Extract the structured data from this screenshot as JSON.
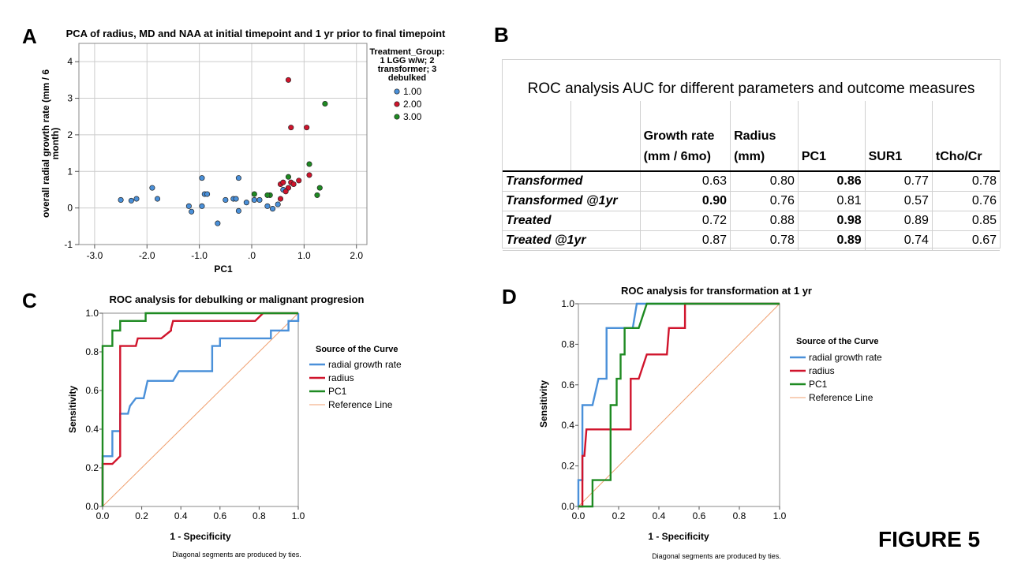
{
  "figure_label": "FIGURE 5",
  "panels": {
    "a": "A",
    "b": "B",
    "c": "C",
    "d": "D"
  },
  "colors": {
    "blue": "#4a90d9",
    "red": "#d0142c",
    "green": "#1e8a22",
    "ref": "#f0a070",
    "grid": "#cccccc"
  },
  "chart_data": [
    {
      "id": "A",
      "type": "scatter",
      "title": "PCA of radius, MD and NAA at initial timepoint and 1 yr prior to final timepoint",
      "xlabel": "PC1",
      "ylabel": "overall radial growth rate (mm / 6 month)",
      "xlim": [
        -3.3,
        2.2
      ],
      "ylim": [
        -1,
        4.5
      ],
      "xticks": [
        -3,
        -2,
        -1,
        0,
        1,
        2
      ],
      "xtick_labels": [
        "-3.0",
        "-2.0",
        "-1.0",
        ".0",
        "1.0",
        "2.0"
      ],
      "yticks": [
        -1,
        0,
        1,
        2,
        3,
        4
      ],
      "ytick_labels": [
        "-1",
        "0",
        "1",
        "2",
        "3",
        "4"
      ],
      "legend_title": "Treatment_Group: 1 LGG w/w; 2 transformer; 3 debulked",
      "series": [
        {
          "name": "1.00",
          "color": "#4a90d9",
          "points": [
            [
              -2.5,
              0.22
            ],
            [
              -2.3,
              0.2
            ],
            [
              -2.2,
              0.25
            ],
            [
              -1.9,
              0.55
            ],
            [
              -1.8,
              0.25
            ],
            [
              -1.2,
              0.05
            ],
            [
              -1.15,
              -0.1
            ],
            [
              -0.95,
              0.82
            ],
            [
              -0.9,
              0.38
            ],
            [
              -0.85,
              0.38
            ],
            [
              -0.95,
              0.05
            ],
            [
              -0.65,
              -0.42
            ],
            [
              -0.5,
              0.22
            ],
            [
              -0.35,
              0.25
            ],
            [
              -0.3,
              0.25
            ],
            [
              -0.25,
              0.82
            ],
            [
              -0.25,
              -0.08
            ],
            [
              -0.1,
              0.15
            ],
            [
              0.05,
              0.22
            ],
            [
              0.15,
              0.22
            ],
            [
              0.3,
              0.05
            ],
            [
              0.4,
              -0.02
            ],
            [
              0.5,
              0.1
            ],
            [
              0.6,
              0.5
            ]
          ]
        },
        {
          "name": "2.00",
          "color": "#d0142c",
          "points": [
            [
              0.7,
              3.5
            ],
            [
              0.75,
              2.2
            ],
            [
              1.05,
              2.2
            ],
            [
              1.1,
              0.9
            ],
            [
              0.55,
              0.65
            ],
            [
              0.6,
              0.7
            ],
            [
              0.7,
              0.55
            ],
            [
              0.75,
              0.7
            ],
            [
              0.8,
              0.65
            ],
            [
              0.9,
              0.75
            ],
            [
              0.65,
              0.45
            ],
            [
              0.55,
              0.25
            ]
          ]
        },
        {
          "name": "3.00",
          "color": "#1e8a22",
          "points": [
            [
              1.4,
              2.85
            ],
            [
              1.1,
              1.2
            ],
            [
              1.3,
              0.55
            ],
            [
              1.25,
              0.35
            ],
            [
              0.7,
              0.85
            ],
            [
              0.35,
              0.35
            ],
            [
              0.3,
              0.35
            ],
            [
              0.05,
              0.38
            ]
          ]
        }
      ]
    },
    {
      "id": "C",
      "type": "line",
      "title": "ROC analysis for debulking or malignant progresion",
      "xlabel": "1 - Specificity",
      "ylabel": "Sensitivity",
      "xlim": [
        0,
        1
      ],
      "ylim": [
        0,
        1
      ],
      "ticks": [
        0,
        0.2,
        0.4,
        0.6,
        0.8,
        1.0
      ],
      "tick_labels": [
        "0.0",
        "0.2",
        "0.4",
        "0.6",
        "0.8",
        "1.0"
      ],
      "legend_title": "Source of the Curve",
      "footnote": "Diagonal segments are produced by ties.",
      "series": [
        {
          "name": "radial growth rate",
          "color": "#4a90d9",
          "points": [
            [
              0,
              0
            ],
            [
              0,
              0.26
            ],
            [
              0.05,
              0.26
            ],
            [
              0.05,
              0.39
            ],
            [
              0.09,
              0.39
            ],
            [
              0.09,
              0.48
            ],
            [
              0.13,
              0.48
            ],
            [
              0.14,
              0.52
            ],
            [
              0.17,
              0.56
            ],
            [
              0.21,
              0.56
            ],
            [
              0.23,
              0.65
            ],
            [
              0.36,
              0.65
            ],
            [
              0.39,
              0.7
            ],
            [
              0.56,
              0.7
            ],
            [
              0.56,
              0.83
            ],
            [
              0.6,
              0.83
            ],
            [
              0.6,
              0.87
            ],
            [
              0.86,
              0.87
            ],
            [
              0.86,
              0.91
            ],
            [
              0.95,
              0.91
            ],
            [
              0.95,
              0.96
            ],
            [
              1,
              0.96
            ],
            [
              1,
              1
            ]
          ]
        },
        {
          "name": "radius",
          "color": "#d0142c",
          "points": [
            [
              0,
              0
            ],
            [
              0,
              0.22
            ],
            [
              0.05,
              0.22
            ],
            [
              0.09,
              0.26
            ],
            [
              0.09,
              0.83
            ],
            [
              0.17,
              0.83
            ],
            [
              0.18,
              0.87
            ],
            [
              0.3,
              0.87
            ],
            [
              0.35,
              0.91
            ],
            [
              0.35,
              0.92
            ],
            [
              0.36,
              0.96
            ],
            [
              0.78,
              0.96
            ],
            [
              0.82,
              1
            ],
            [
              1,
              1
            ]
          ]
        },
        {
          "name": "PC1",
          "color": "#1e8a22",
          "points": [
            [
              0,
              0
            ],
            [
              0,
              0.83
            ],
            [
              0.05,
              0.83
            ],
            [
              0.05,
              0.91
            ],
            [
              0.09,
              0.91
            ],
            [
              0.09,
              0.96
            ],
            [
              0.22,
              0.96
            ],
            [
              0.22,
              1
            ],
            [
              1,
              1
            ]
          ]
        },
        {
          "name": "Reference Line",
          "color": "#f0a070",
          "points": [
            [
              0,
              0
            ],
            [
              1,
              1
            ]
          ]
        }
      ]
    },
    {
      "id": "D",
      "type": "line",
      "title": "ROC analysis for transformation at 1 yr",
      "xlabel": "1 - Specificity",
      "ylabel": "Sensitivity",
      "xlim": [
        0,
        1
      ],
      "ylim": [
        0,
        1
      ],
      "ticks": [
        0,
        0.2,
        0.4,
        0.6,
        0.8,
        1.0
      ],
      "tick_labels": [
        "0.0",
        "0.2",
        "0.4",
        "0.6",
        "0.8",
        "1.0"
      ],
      "legend_title": "Source of the Curve",
      "footnote": "Diagonal segments are produced by ties.",
      "series": [
        {
          "name": "radial growth rate",
          "color": "#4a90d9",
          "points": [
            [
              0,
              0
            ],
            [
              0,
              0.13
            ],
            [
              0.02,
              0.13
            ],
            [
              0.02,
              0.5
            ],
            [
              0.07,
              0.5
            ],
            [
              0.1,
              0.63
            ],
            [
              0.14,
              0.63
            ],
            [
              0.14,
              0.88
            ],
            [
              0.27,
              0.88
            ],
            [
              0.29,
              1
            ],
            [
              1,
              1
            ]
          ]
        },
        {
          "name": "radius",
          "color": "#d0142c",
          "points": [
            [
              0,
              0
            ],
            [
              0.02,
              0
            ],
            [
              0.02,
              0.25
            ],
            [
              0.03,
              0.25
            ],
            [
              0.04,
              0.38
            ],
            [
              0.26,
              0.38
            ],
            [
              0.26,
              0.63
            ],
            [
              0.3,
              0.63
            ],
            [
              0.34,
              0.75
            ],
            [
              0.44,
              0.75
            ],
            [
              0.45,
              0.88
            ],
            [
              0.53,
              0.88
            ],
            [
              0.53,
              1
            ],
            [
              1,
              1
            ]
          ]
        },
        {
          "name": "PC1",
          "color": "#1e8a22",
          "points": [
            [
              0,
              0
            ],
            [
              0.07,
              0
            ],
            [
              0.07,
              0.13
            ],
            [
              0.16,
              0.13
            ],
            [
              0.16,
              0.5
            ],
            [
              0.19,
              0.5
            ],
            [
              0.19,
              0.63
            ],
            [
              0.21,
              0.63
            ],
            [
              0.21,
              0.75
            ],
            [
              0.23,
              0.75
            ],
            [
              0.23,
              0.88
            ],
            [
              0.3,
              0.88
            ],
            [
              0.34,
              1
            ],
            [
              1,
              1
            ]
          ]
        },
        {
          "name": "Reference Line",
          "color": "#f0a070",
          "points": [
            [
              0,
              0
            ],
            [
              1,
              1
            ]
          ]
        }
      ]
    },
    {
      "id": "B",
      "type": "table",
      "title": "ROC analysis AUC for different parameters and outcome measures",
      "columns": [
        "Growth rate (mm / 6mo)",
        "Radius (mm)",
        "PC1",
        "SUR1",
        "tCho/Cr"
      ],
      "rows": [
        {
          "label": "Transformed",
          "values": [
            "0.63",
            "0.80",
            "0.86",
            "0.77",
            "0.78"
          ],
          "bold": [
            2
          ]
        },
        {
          "label": "Transformed @1yr",
          "values": [
            "0.90",
            "0.76",
            "0.81",
            "0.57",
            "0.76"
          ],
          "bold": [
            0
          ]
        },
        {
          "label": "Treated",
          "values": [
            "0.72",
            "0.88",
            "0.98",
            "0.89",
            "0.85"
          ],
          "bold": [
            2
          ]
        },
        {
          "label": "Treated @1yr",
          "values": [
            "0.87",
            "0.78",
            "0.89",
            "0.74",
            "0.67"
          ],
          "bold": [
            2
          ]
        }
      ]
    }
  ]
}
